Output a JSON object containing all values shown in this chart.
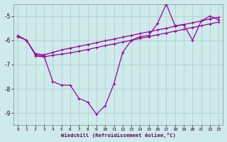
{
  "xlabel": "Windchill (Refroidissement éolien,°C)",
  "bg_color": "#ceeaea",
  "line_color": "#990099",
  "grid_color": "#aacccc",
  "xlim": [
    -0.5,
    23.5
  ],
  "ylim": [
    -9.5,
    -4.5
  ],
  "xticks": [
    0,
    1,
    2,
    3,
    4,
    5,
    6,
    7,
    8,
    9,
    10,
    11,
    12,
    13,
    14,
    15,
    16,
    17,
    18,
    19,
    20,
    21,
    22,
    23
  ],
  "yticks": [
    -9,
    -8,
    -7,
    -6,
    -5
  ],
  "line1_x": [
    0,
    1,
    2,
    3,
    4,
    5,
    6,
    7,
    8,
    9,
    10,
    11,
    12,
    13,
    14,
    15,
    16,
    17,
    18,
    19,
    20,
    21,
    22,
    23
  ],
  "line1_y": [
    -5.8,
    -6.0,
    -6.6,
    -6.65,
    -7.7,
    -7.85,
    -7.85,
    -8.4,
    -8.55,
    -9.05,
    -8.7,
    -7.8,
    -6.5,
    -6.0,
    -5.85,
    -5.8,
    -5.3,
    -4.5,
    -5.4,
    -5.35,
    -6.0,
    -5.2,
    -5.0,
    -5.15
  ],
  "line2_x": [
    0,
    1,
    2,
    3,
    4,
    5,
    6,
    7,
    8,
    9,
    10,
    11,
    12,
    13,
    14,
    15,
    16,
    17,
    18,
    19,
    20,
    21,
    22,
    23
  ],
  "line2_y": [
    -5.85,
    -6.0,
    -6.55,
    -6.6,
    -6.5,
    -6.4,
    -6.32,
    -6.25,
    -6.18,
    -6.1,
    -6.02,
    -5.95,
    -5.87,
    -5.8,
    -5.72,
    -5.65,
    -5.57,
    -5.5,
    -5.42,
    -5.35,
    -5.28,
    -5.2,
    -5.12,
    -5.05
  ],
  "line3_x": [
    2,
    3,
    4,
    5,
    6,
    7,
    8,
    9,
    10,
    11,
    12,
    13,
    14,
    15,
    16,
    17,
    18,
    19,
    20,
    21,
    22,
    23
  ],
  "line3_y": [
    -6.65,
    -6.68,
    -6.62,
    -6.57,
    -6.52,
    -6.45,
    -6.38,
    -6.3,
    -6.22,
    -6.15,
    -6.07,
    -6.0,
    -5.92,
    -5.85,
    -5.77,
    -5.7,
    -5.62,
    -5.55,
    -5.47,
    -5.4,
    -5.32,
    -5.25
  ]
}
